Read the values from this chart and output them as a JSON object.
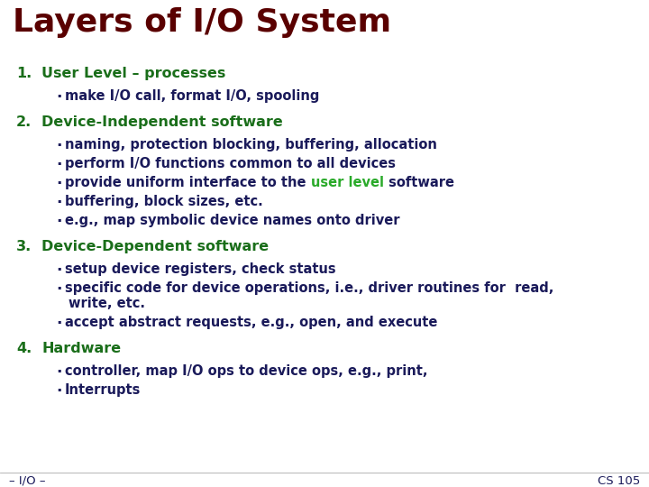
{
  "title": "Layers of I/O System",
  "title_color": "#5a0000",
  "title_fontsize": 26,
  "bg_color": "#ffffff",
  "heading_color": "#1a6e1a",
  "bullet_color": "#1a1a5a",
  "highlight_color": "#2aaa2a",
  "footer_left": "– I/O –",
  "footer_right": "CS 105",
  "footer_color": "#1a1a5a",
  "heading_fs": 11.5,
  "bullet_fs": 10.5,
  "footer_fs": 9.5,
  "sections": [
    {
      "number": "1.",
      "heading": "User Level – processes",
      "bullets": [
        {
          "parts": [
            {
              "text": "make I/O call, format I/O, spooling",
              "color": "bullet"
            }
          ]
        }
      ]
    },
    {
      "number": "2.",
      "heading": "Device-Independent software",
      "bullets": [
        {
          "parts": [
            {
              "text": "naming, protection blocking, buffering, allocation",
              "color": "bullet"
            }
          ]
        },
        {
          "parts": [
            {
              "text": "perform I/O functions common to all devices",
              "color": "bullet"
            }
          ]
        },
        {
          "parts": [
            {
              "text": "provide uniform interface to the ",
              "color": "bullet"
            },
            {
              "text": "user level",
              "color": "highlight"
            },
            {
              "text": " software",
              "color": "bullet"
            }
          ]
        },
        {
          "parts": [
            {
              "text": "buffering, block sizes, etc.",
              "color": "bullet"
            }
          ]
        },
        {
          "parts": [
            {
              "text": "e.g., map symbolic device names onto driver",
              "color": "bullet"
            }
          ]
        }
      ]
    },
    {
      "number": "3.",
      "heading": "Device-Dependent software",
      "bullets": [
        {
          "parts": [
            {
              "text": "setup device registers, check status",
              "color": "bullet"
            }
          ]
        },
        {
          "parts": [
            {
              "text": "specific code for device operations, i.e., driver routines for  read,",
              "color": "bullet"
            }
          ],
          "cont": "write, etc."
        },
        {
          "parts": [
            {
              "text": "accept abstract requests, e.g., open, and execute",
              "color": "bullet"
            }
          ]
        }
      ]
    },
    {
      "number": "4.",
      "heading": "Hardware",
      "bullets": [
        {
          "parts": [
            {
              "text": "controller, map I/O ops to device ops, e.g., print,",
              "color": "bullet"
            }
          ]
        },
        {
          "parts": [
            {
              "text": "Interrupts",
              "color": "bullet"
            }
          ]
        }
      ]
    }
  ]
}
